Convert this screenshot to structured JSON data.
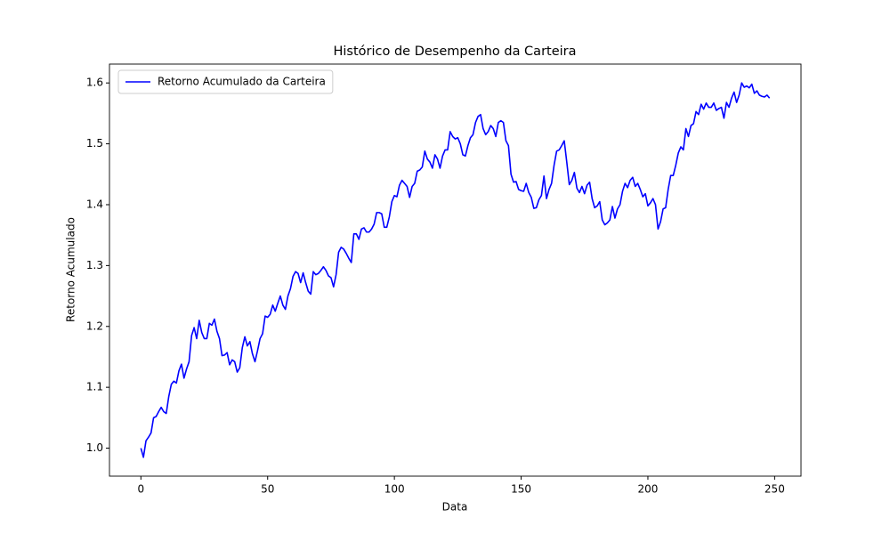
{
  "chart_data": {
    "type": "line",
    "title": "Histórico de Desempenho da Carteira",
    "x_label": "Data",
    "y_label": "Retorno Acumulado",
    "x": [
      0,
      1,
      2,
      3,
      4,
      5,
      6,
      7,
      8,
      9,
      10,
      11,
      12,
      13,
      14,
      15,
      16,
      17,
      18,
      19,
      20,
      21,
      22,
      23,
      24,
      25,
      26,
      27,
      28,
      29,
      30,
      31,
      32,
      33,
      34,
      35,
      36,
      37,
      38,
      39,
      40,
      41,
      42,
      43,
      44,
      45,
      46,
      47,
      48,
      49,
      50,
      51,
      52,
      53,
      54,
      55,
      56,
      57,
      58,
      59,
      60,
      61,
      62,
      63,
      64,
      65,
      66,
      67,
      68,
      69,
      70,
      71,
      72,
      73,
      74,
      75,
      76,
      77,
      78,
      79,
      80,
      81,
      82,
      83,
      84,
      85,
      86,
      87,
      88,
      89,
      90,
      91,
      92,
      93,
      94,
      95,
      96,
      97,
      98,
      99,
      100,
      101,
      102,
      103,
      104,
      105,
      106,
      107,
      108,
      109,
      110,
      111,
      112,
      113,
      114,
      115,
      116,
      117,
      118,
      119,
      120,
      121,
      122,
      123,
      124,
      125,
      126,
      127,
      128,
      129,
      130,
      131,
      132,
      133,
      134,
      135,
      136,
      137,
      138,
      139,
      140,
      141,
      142,
      143,
      144,
      145,
      146,
      147,
      148,
      149,
      150,
      151,
      152,
      153,
      154,
      155,
      156,
      157,
      158,
      159,
      160,
      161,
      162,
      163,
      164,
      165,
      166,
      167,
      168,
      169,
      170,
      171,
      172,
      173,
      174,
      175,
      176,
      177,
      178,
      179,
      180,
      181,
      182,
      183,
      184,
      185,
      186,
      187,
      188,
      189,
      190,
      191,
      192,
      193,
      194,
      195,
      196,
      197,
      198,
      199,
      200,
      201,
      202,
      203,
      204,
      205,
      206,
      207,
      208,
      209,
      210,
      211,
      212,
      213,
      214,
      215,
      216,
      217,
      218,
      219,
      220,
      221,
      222,
      223,
      224,
      225,
      226,
      227,
      228,
      229,
      230,
      231,
      232,
      233,
      234,
      235,
      236,
      237,
      238,
      239,
      240,
      241,
      242,
      243,
      244,
      245,
      246,
      247,
      248
    ],
    "series": [
      {
        "name": "Retorno Acumulado da Carteira",
        "color": "#0000ff",
        "values": [
          1.0,
          0.985,
          1.012,
          1.018,
          1.025,
          1.05,
          1.052,
          1.06,
          1.067,
          1.06,
          1.057,
          1.085,
          1.105,
          1.11,
          1.107,
          1.127,
          1.138,
          1.115,
          1.13,
          1.142,
          1.185,
          1.198,
          1.18,
          1.21,
          1.19,
          1.18,
          1.18,
          1.205,
          1.202,
          1.212,
          1.192,
          1.18,
          1.152,
          1.153,
          1.157,
          1.137,
          1.145,
          1.142,
          1.125,
          1.132,
          1.165,
          1.183,
          1.168,
          1.175,
          1.155,
          1.142,
          1.16,
          1.18,
          1.188,
          1.217,
          1.215,
          1.22,
          1.235,
          1.225,
          1.238,
          1.25,
          1.235,
          1.228,
          1.25,
          1.262,
          1.282,
          1.29,
          1.287,
          1.272,
          1.288,
          1.272,
          1.258,
          1.253,
          1.29,
          1.285,
          1.287,
          1.292,
          1.298,
          1.292,
          1.283,
          1.28,
          1.265,
          1.285,
          1.322,
          1.33,
          1.327,
          1.32,
          1.312,
          1.305,
          1.352,
          1.352,
          1.343,
          1.36,
          1.362,
          1.355,
          1.355,
          1.36,
          1.368,
          1.387,
          1.387,
          1.385,
          1.363,
          1.363,
          1.38,
          1.405,
          1.415,
          1.413,
          1.432,
          1.44,
          1.435,
          1.43,
          1.412,
          1.43,
          1.435,
          1.455,
          1.457,
          1.462,
          1.488,
          1.475,
          1.47,
          1.46,
          1.482,
          1.475,
          1.46,
          1.48,
          1.49,
          1.49,
          1.52,
          1.512,
          1.508,
          1.51,
          1.5,
          1.482,
          1.48,
          1.497,
          1.51,
          1.515,
          1.535,
          1.545,
          1.548,
          1.525,
          1.515,
          1.52,
          1.53,
          1.525,
          1.512,
          1.535,
          1.538,
          1.535,
          1.505,
          1.497,
          1.45,
          1.437,
          1.438,
          1.425,
          1.423,
          1.422,
          1.435,
          1.42,
          1.412,
          1.394,
          1.395,
          1.408,
          1.415,
          1.447,
          1.41,
          1.425,
          1.435,
          1.465,
          1.488,
          1.49,
          1.497,
          1.505,
          1.47,
          1.433,
          1.44,
          1.453,
          1.427,
          1.42,
          1.43,
          1.418,
          1.432,
          1.437,
          1.41,
          1.395,
          1.398,
          1.405,
          1.375,
          1.367,
          1.37,
          1.375,
          1.397,
          1.378,
          1.393,
          1.4,
          1.422,
          1.435,
          1.428,
          1.44,
          1.445,
          1.43,
          1.435,
          1.425,
          1.413,
          1.418,
          1.398,
          1.403,
          1.41,
          1.4,
          1.36,
          1.372,
          1.393,
          1.395,
          1.425,
          1.448,
          1.448,
          1.465,
          1.485,
          1.495,
          1.49,
          1.525,
          1.512,
          1.53,
          1.533,
          1.553,
          1.548,
          1.565,
          1.557,
          1.567,
          1.56,
          1.56,
          1.567,
          1.555,
          1.558,
          1.56,
          1.542,
          1.568,
          1.56,
          1.575,
          1.585,
          1.568,
          1.58,
          1.6,
          1.593,
          1.595,
          1.592,
          1.598,
          1.583,
          1.587,
          1.58,
          1.578,
          1.577,
          1.58,
          1.575
        ]
      }
    ],
    "xlim": [
      -12.4,
      260.4
    ],
    "ylim": [
      0.954,
      1.631
    ],
    "xticks": [
      0,
      50,
      100,
      150,
      200,
      250
    ],
    "yticks": [
      {
        "value": 1,
        "label": "1.0"
      },
      1.1,
      1.2,
      1.3,
      1.4,
      1.5,
      1.6
    ],
    "legend": "upper left",
    "grid": false
  }
}
